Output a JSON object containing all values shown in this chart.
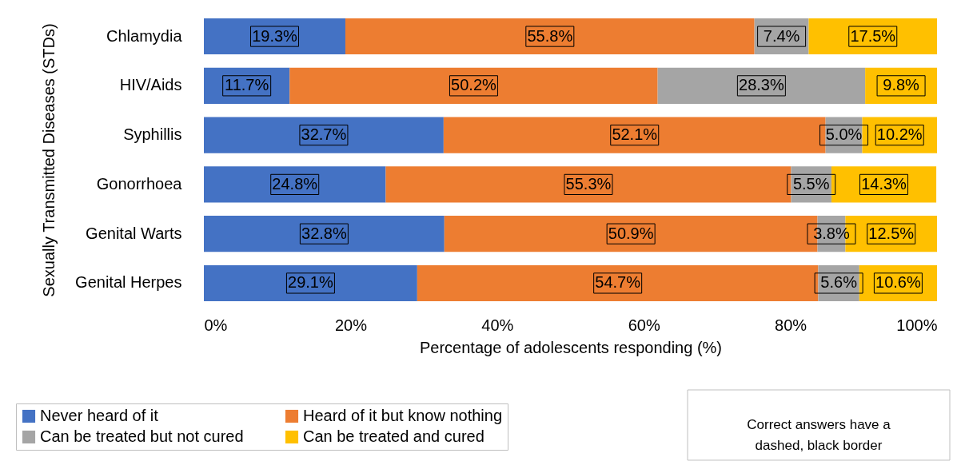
{
  "chart_data": {
    "type": "bar",
    "orientation": "horizontal",
    "stacked": true,
    "categories": [
      "Chlamydia",
      "HIV/Aids",
      "Syphillis",
      "Gonorrhoea",
      "Genital Warts",
      "Genital Herpes"
    ],
    "series": [
      {
        "name": "Never heard of it",
        "color": "#4472c4",
        "values": [
          19.3,
          11.7,
          32.7,
          24.8,
          32.8,
          29.1
        ],
        "value_labels": [
          "19.3%",
          "11.7%",
          "32.7%",
          "24.8%",
          "32.8%",
          "29.1%"
        ]
      },
      {
        "name": "Heard of it but know nothing",
        "color": "#ed7d31",
        "values": [
          55.8,
          50.2,
          52.1,
          55.3,
          50.9,
          54.7
        ],
        "value_labels": [
          "55.8%",
          "50.2%",
          "52.1%",
          "55.3%",
          "50.9%",
          "54.7%"
        ]
      },
      {
        "name": "Can be treated but not cured",
        "color": "#a5a5a5",
        "values": [
          7.4,
          28.3,
          5.0,
          5.5,
          3.8,
          5.6
        ],
        "value_labels": [
          "7.4%",
          "28.3%",
          "5.0%",
          "5.5%",
          "3.8%",
          "5.6%"
        ]
      },
      {
        "name": "Can be treated and cured",
        "color": "#ffc000",
        "values": [
          17.5,
          9.8,
          10.2,
          14.3,
          12.5,
          10.6
        ],
        "value_labels": [
          "17.5%",
          "9.8%",
          "10.2%",
          "14.3%",
          "12.5%",
          "10.6%"
        ]
      }
    ],
    "xlim": [
      0,
      100
    ],
    "xticks": [
      {
        "value": 0,
        "label": "0%"
      },
      {
        "value": 20,
        "label": "20%"
      },
      {
        "value": 40,
        "label": "40%"
      },
      {
        "value": 60,
        "label": "60%"
      },
      {
        "value": 80,
        "label": "80%"
      },
      {
        "value": 100,
        "label": "100%"
      }
    ],
    "xlabel": "Percentage of adolescents responding (%)",
    "ylabel": "Sexually Transmitted Diseases (STDs)",
    "grid": false,
    "legend": "bottom",
    "annotations": [
      "Correct answers have a dashed, black border"
    ]
  }
}
